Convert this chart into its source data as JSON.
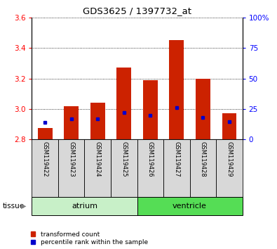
{
  "title": "GDS3625 / 1397732_at",
  "samples": [
    "GSM119422",
    "GSM119423",
    "GSM119424",
    "GSM119425",
    "GSM119426",
    "GSM119427",
    "GSM119428",
    "GSM119429"
  ],
  "transformed_counts": [
    2.875,
    3.02,
    3.04,
    3.27,
    3.19,
    3.45,
    3.2,
    2.97
  ],
  "percentile_values": [
    2.91,
    2.935,
    2.935,
    2.975,
    2.96,
    3.01,
    2.945,
    2.915
  ],
  "baseline": 2.8,
  "ylim_left": [
    2.8,
    3.6
  ],
  "ylim_right": [
    0,
    100
  ],
  "yticks_left": [
    2.8,
    3.0,
    3.2,
    3.4,
    3.6
  ],
  "yticks_right": [
    0,
    25,
    50,
    75,
    100
  ],
  "ytick_labels_right": [
    "0",
    "25",
    "50",
    "75",
    "100%"
  ],
  "bar_color": "#cc2200",
  "percentile_color": "#0000cc",
  "bar_width": 0.55,
  "atrium_color": "#c8f0c8",
  "ventricle_color": "#55dd55",
  "sample_box_color": "#d8d8d8",
  "legend_items": [
    {
      "label": "transformed count",
      "color": "#cc2200"
    },
    {
      "label": "percentile rank within the sample",
      "color": "#0000cc"
    }
  ],
  "grid_linestyle": ":"
}
